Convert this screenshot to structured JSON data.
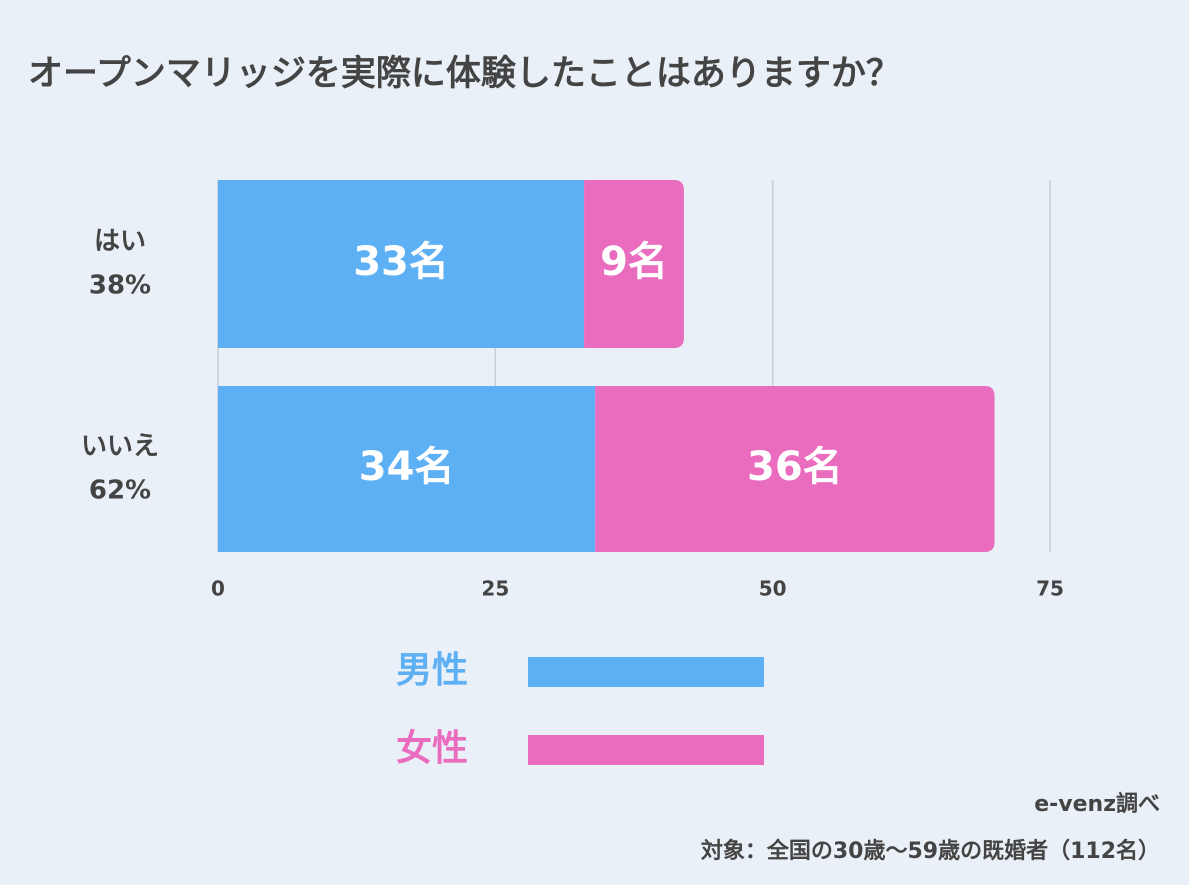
{
  "chart_data": {
    "type": "stacked-barh",
    "title": "オープンマリッジを実際に体験したことはありますか？",
    "categories": [
      "はい",
      "いいえ"
    ],
    "category_shares": [
      "38%",
      "62%"
    ],
    "series": [
      {
        "name": "男性",
        "color": "#5eb0f5",
        "values": [
          33,
          34
        ],
        "value_labels": [
          "33名",
          "34名"
        ]
      },
      {
        "name": "女性",
        "color": "#ea6cbf",
        "values": [
          9,
          36
        ],
        "value_labels": [
          "9名",
          "36名"
        ]
      }
    ],
    "xlim": [
      0,
      75
    ],
    "xticks": [
      0,
      25,
      50,
      75
    ],
    "grid": true,
    "source": "e-venz調べ",
    "note": "対象：全国の30歳〜59歳の既婚者（112名）"
  }
}
